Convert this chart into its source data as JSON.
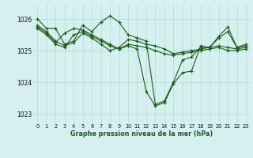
{
  "title": "Graphe pression niveau de la mer (hPa)",
  "bg_color": "#d6f0f0",
  "grid_color": "#b8ddd8",
  "line_color": "#1a5c1a",
  "marker_color": "#1a5c1a",
  "xlim": [
    -0.5,
    23.5
  ],
  "ylim": [
    1022.7,
    1026.45
  ],
  "yticks": [
    1023,
    1024,
    1025,
    1026
  ],
  "xticks": [
    0,
    1,
    2,
    3,
    4,
    5,
    6,
    7,
    8,
    9,
    10,
    11,
    12,
    13,
    14,
    15,
    16,
    17,
    18,
    19,
    20,
    21,
    22,
    23
  ],
  "series": [
    [
      1026.0,
      1025.7,
      1025.7,
      1025.2,
      1025.3,
      1025.8,
      1025.6,
      1025.9,
      1026.1,
      1025.9,
      1025.5,
      1025.4,
      1025.3,
      1023.3,
      1023.4,
      1024.0,
      1024.7,
      1024.8,
      1025.1,
      1025.1,
      1025.4,
      1025.6,
      1025.1,
      1025.2
    ],
    [
      1025.8,
      1025.6,
      1025.3,
      1025.15,
      1025.25,
      1025.55,
      1025.4,
      1025.2,
      1025.0,
      1025.1,
      1025.35,
      1025.3,
      1025.2,
      1025.15,
      1025.05,
      1024.9,
      1024.95,
      1025.0,
      1025.05,
      1025.1,
      1025.15,
      1025.1,
      1025.05,
      1025.1
    ],
    [
      1025.75,
      1025.55,
      1025.25,
      1025.55,
      1025.7,
      1025.65,
      1025.5,
      1025.35,
      1025.2,
      1025.05,
      1025.2,
      1025.15,
      1025.1,
      1025.0,
      1024.9,
      1024.85,
      1024.9,
      1024.95,
      1025.0,
      1025.05,
      1025.1,
      1025.0,
      1025.0,
      1025.05
    ],
    [
      1025.7,
      1025.5,
      1025.2,
      1025.1,
      1025.5,
      1025.6,
      1025.45,
      1025.3,
      1025.15,
      1025.05,
      1025.15,
      1025.05,
      1023.7,
      1023.25,
      1023.35,
      1023.95,
      1024.3,
      1024.35,
      1025.15,
      1025.1,
      1025.45,
      1025.75,
      1025.1,
      1025.15
    ]
  ]
}
